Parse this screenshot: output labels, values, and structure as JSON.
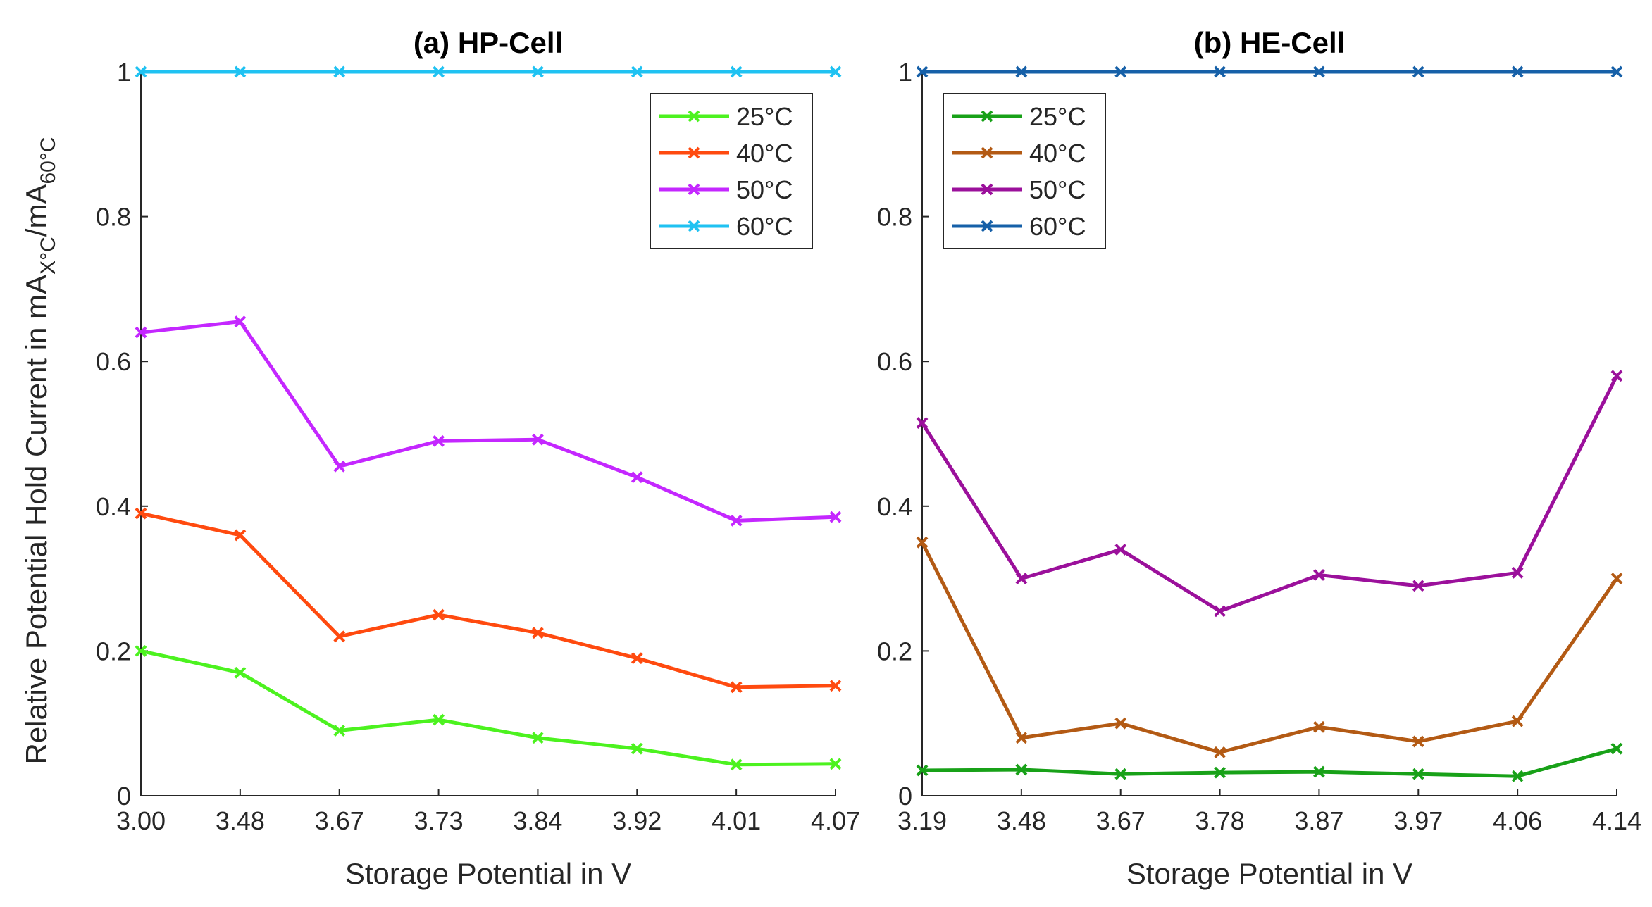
{
  "ylabel": {
    "prefix": "Relative Potential Hold Current in mA",
    "sub1": "X°C",
    "mid": "/mA",
    "sub2": "60°C"
  },
  "chart_data": [
    {
      "type": "line",
      "title": "(a) HP-Cell",
      "xlabel": "Storage Potential in V",
      "categories": [
        "3.00",
        "3.48",
        "3.67",
        "3.73",
        "3.84",
        "3.92",
        "4.01",
        "4.07"
      ],
      "ylim": [
        0,
        1
      ],
      "yticks": [
        "0",
        "0.2",
        "0.4",
        "0.6",
        "0.8",
        "1"
      ],
      "legend_position": "top-right",
      "grid": false,
      "series": [
        {
          "name": "25°C",
          "color": "#4cf21f",
          "values": [
            0.2,
            0.17,
            0.09,
            0.105,
            0.08,
            0.065,
            0.043,
            0.044
          ]
        },
        {
          "name": "40°C",
          "color": "#ff4a0f",
          "values": [
            0.39,
            0.36,
            0.22,
            0.25,
            0.225,
            0.19,
            0.15,
            0.152
          ]
        },
        {
          "name": "50°C",
          "color": "#c427ff",
          "values": [
            0.64,
            0.655,
            0.455,
            0.49,
            0.492,
            0.44,
            0.38,
            0.385
          ]
        },
        {
          "name": "60°C",
          "color": "#1fc2f2",
          "values": [
            1,
            1,
            1,
            1,
            1,
            1,
            1,
            1
          ]
        }
      ]
    },
    {
      "type": "line",
      "title": "(b) HE-Cell",
      "xlabel": "Storage Potential in V",
      "categories": [
        "3.19",
        "3.48",
        "3.67",
        "3.78",
        "3.87",
        "3.97",
        "4.06",
        "4.14"
      ],
      "ylim": [
        0,
        1
      ],
      "yticks": [
        "0",
        "0.2",
        "0.4",
        "0.6",
        "0.8",
        "1"
      ],
      "legend_position": "top-left",
      "grid": false,
      "series": [
        {
          "name": "25°C",
          "color": "#18a118",
          "values": [
            0.035,
            0.036,
            0.03,
            0.032,
            0.033,
            0.03,
            0.027,
            0.065
          ]
        },
        {
          "name": "40°C",
          "color": "#b35a14",
          "values": [
            0.35,
            0.08,
            0.1,
            0.06,
            0.095,
            0.075,
            0.103,
            0.3
          ]
        },
        {
          "name": "50°C",
          "color": "#9b109b",
          "values": [
            0.515,
            0.3,
            0.34,
            0.255,
            0.305,
            0.29,
            0.308,
            0.58
          ]
        },
        {
          "name": "60°C",
          "color": "#1660a8",
          "values": [
            1,
            1,
            1,
            1,
            1,
            1,
            1,
            1
          ]
        }
      ]
    }
  ]
}
